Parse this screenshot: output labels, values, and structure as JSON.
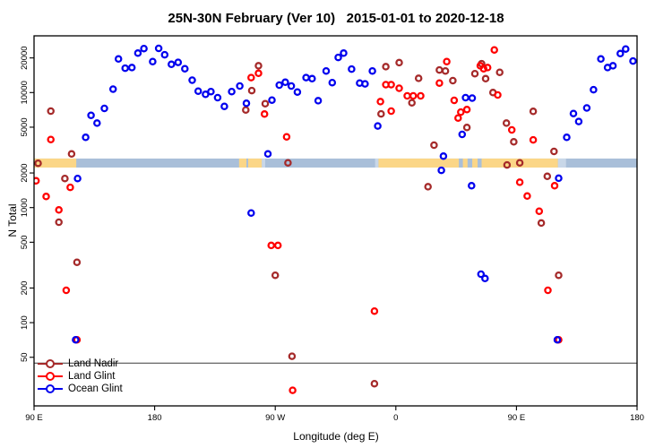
{
  "window": {
    "title": "25N-30N February (Ver 10)   2015-01-01 to 2020-12-18"
  },
  "chart_data": {
    "type": "scatter",
    "title": "25N-30N February (Ver 10)   2015-01-01 to 2020-12-18",
    "xlabel": "Longitude (deg E)",
    "ylabel": "N Total",
    "grid": false,
    "legend_position": "bottom-left",
    "x_axis": {
      "min": -270,
      "max": 180,
      "ticks": [
        -270,
        -180,
        -90,
        0,
        90,
        180
      ],
      "tick_labels": [
        "90 E",
        "180",
        "90 W",
        "0",
        "90 E",
        "180"
      ]
    },
    "y_axis": {
      "scale": "log",
      "range": [
        18,
        28500
      ],
      "ticks": [
        50,
        100,
        200,
        500,
        1000,
        2000,
        5000,
        10000,
        20000
      ],
      "tick_labels": [
        "50",
        "100",
        "200",
        "500",
        "1000",
        "2000",
        "5000",
        "10000",
        "20000"
      ]
    },
    "threshold_line": {
      "value": 44.5,
      "color": "#3a3a3a"
    },
    "map_band": {
      "value_top": 2670,
      "value_bottom": 2230,
      "ocean_color": "#a9bfd9",
      "land_color": "#fbd687",
      "light_color": "#c8d7e8",
      "land_segments": [
        [
          -270,
          -238.5
        ],
        [
          -117,
          -100
        ],
        [
          -13,
          121
        ]
      ],
      "ocean_inlets": [
        [
          47,
          50
        ],
        [
          53.5,
          57
        ],
        [
          61,
          64
        ],
        [
          -111.5,
          -110.2
        ]
      ],
      "light_patches": [
        [
          -15.5,
          -13
        ],
        [
          121,
          127
        ],
        [
          -100,
          -97.5
        ]
      ]
    },
    "series": [
      {
        "name": "Land Nadir",
        "color": "#a52a2a",
        "marker": "open-circle",
        "points": [
          [
            -257.5,
            6900
          ],
          [
            -242,
            2930
          ],
          [
            -267,
            2430
          ],
          [
            -247,
            1790
          ],
          [
            -251.5,
            746
          ],
          [
            -238,
            335
          ],
          [
            -102.5,
            17100
          ],
          [
            -107.5,
            10400
          ],
          [
            -112,
            7060
          ],
          [
            -97.5,
            8000
          ],
          [
            -80.5,
            2450
          ],
          [
            -90,
            258
          ],
          [
            -77.5,
            51
          ],
          [
            -16,
            29.5
          ],
          [
            -11,
            6530
          ],
          [
            -7.5,
            16800
          ],
          [
            2.5,
            18200
          ],
          [
            12,
            8150
          ],
          [
            17,
            13300
          ],
          [
            28.5,
            3490
          ],
          [
            24,
            1520
          ],
          [
            32.5,
            15700
          ],
          [
            37,
            15400
          ],
          [
            42.5,
            12700
          ],
          [
            64,
            17800
          ],
          [
            59,
            14600
          ],
          [
            67,
            13200
          ],
          [
            77.5,
            15000
          ],
          [
            72.5,
            10000
          ],
          [
            53,
            4970
          ],
          [
            82.5,
            5430
          ],
          [
            88,
            3730
          ],
          [
            102.5,
            6860
          ],
          [
            118,
            3080
          ],
          [
            83,
            2350
          ],
          [
            92.5,
            2450
          ],
          [
            113,
            1870
          ],
          [
            121.5,
            258
          ],
          [
            108.5,
            734
          ]
        ]
      },
      {
        "name": "Land Glint",
        "color": "#ff0000",
        "marker": "open-circle",
        "points": [
          [
            -257.5,
            3910
          ],
          [
            -268.5,
            1710
          ],
          [
            -243,
            1500
          ],
          [
            -261,
            1250
          ],
          [
            -251.5,
            955
          ],
          [
            -246,
            191
          ],
          [
            -238,
            71
          ],
          [
            -108,
            13500
          ],
          [
            -102.5,
            14700
          ],
          [
            -98,
            6500
          ],
          [
            -93,
            469
          ],
          [
            -88,
            469
          ],
          [
            -81.5,
            4120
          ],
          [
            -77,
            25.8
          ],
          [
            -16,
            126
          ],
          [
            -11.5,
            8350
          ],
          [
            -7.5,
            11700
          ],
          [
            -3.5,
            11700
          ],
          [
            -3.5,
            6900
          ],
          [
            2.5,
            10900
          ],
          [
            8.5,
            9360
          ],
          [
            13,
            9360
          ],
          [
            18.5,
            9360
          ],
          [
            32.5,
            12100
          ],
          [
            38,
            18600
          ],
          [
            43.5,
            8550
          ],
          [
            46.5,
            6010
          ],
          [
            48.5,
            6770
          ],
          [
            53,
            7110
          ],
          [
            63,
            17100
          ],
          [
            65.5,
            16100
          ],
          [
            68.5,
            16500
          ],
          [
            73.5,
            23500
          ],
          [
            76,
            9530
          ],
          [
            86.5,
            4730
          ],
          [
            102.5,
            3880
          ],
          [
            92.5,
            1660
          ],
          [
            98,
            1260
          ],
          [
            107,
            931
          ],
          [
            113.5,
            191
          ],
          [
            118.5,
            1550
          ],
          [
            121.5,
            71
          ]
        ]
      },
      {
        "name": "Ocean Glint",
        "color": "#0000ee",
        "marker": "open-circle",
        "points": [
          [
            -239,
            71
          ],
          [
            -237.5,
            1790
          ],
          [
            -231.5,
            4080
          ],
          [
            -227.5,
            6340
          ],
          [
            -223,
            5430
          ],
          [
            -217.5,
            7280
          ],
          [
            -211,
            10700
          ],
          [
            -207,
            19600
          ],
          [
            -202,
            16300
          ],
          [
            -197,
            16500
          ],
          [
            -192.5,
            22000
          ],
          [
            -188,
            24100
          ],
          [
            -181.5,
            18600
          ],
          [
            -177,
            24200
          ],
          [
            -172.5,
            21300
          ],
          [
            -167.5,
            17600
          ],
          [
            -162.5,
            18300
          ],
          [
            -157.5,
            16100
          ],
          [
            -152,
            12800
          ],
          [
            -147.5,
            10300
          ],
          [
            -142,
            9640
          ],
          [
            -138,
            10200
          ],
          [
            -133,
            9030
          ],
          [
            -128,
            7590
          ],
          [
            -122.5,
            10200
          ],
          [
            -116.5,
            11400
          ],
          [
            -111.5,
            8070
          ],
          [
            -108,
            898
          ],
          [
            -95.5,
            2930
          ],
          [
            -92.5,
            8600
          ],
          [
            -87,
            11600
          ],
          [
            -82.5,
            12300
          ],
          [
            -78,
            11400
          ],
          [
            -73.5,
            10100
          ],
          [
            -67,
            13500
          ],
          [
            -62.5,
            13200
          ],
          [
            -58,
            8500
          ],
          [
            -52,
            15400
          ],
          [
            -47.5,
            12200
          ],
          [
            -43,
            20200
          ],
          [
            -39,
            22000
          ],
          [
            -33,
            16000
          ],
          [
            -27,
            12100
          ],
          [
            -23,
            11900
          ],
          [
            -17.5,
            15400
          ],
          [
            -13.5,
            5120
          ],
          [
            34,
            2110
          ],
          [
            35.5,
            2800
          ],
          [
            49.5,
            4330
          ],
          [
            52,
            9030
          ],
          [
            57,
            8950
          ],
          [
            56.5,
            1550
          ],
          [
            63.5,
            264
          ],
          [
            66.5,
            242
          ],
          [
            120.5,
            71
          ],
          [
            121.5,
            1800
          ],
          [
            127.5,
            4080
          ],
          [
            132.5,
            6570
          ],
          [
            136.5,
            5600
          ],
          [
            142.5,
            7340
          ],
          [
            147.5,
            10600
          ],
          [
            153,
            19600
          ],
          [
            158,
            16500
          ],
          [
            162,
            17100
          ],
          [
            167.5,
            21800
          ],
          [
            171.5,
            23900
          ],
          [
            177,
            18800
          ]
        ]
      }
    ],
    "legend": {
      "items": [
        "Land Nadir",
        "Land Glint",
        "Ocean Glint"
      ]
    }
  }
}
